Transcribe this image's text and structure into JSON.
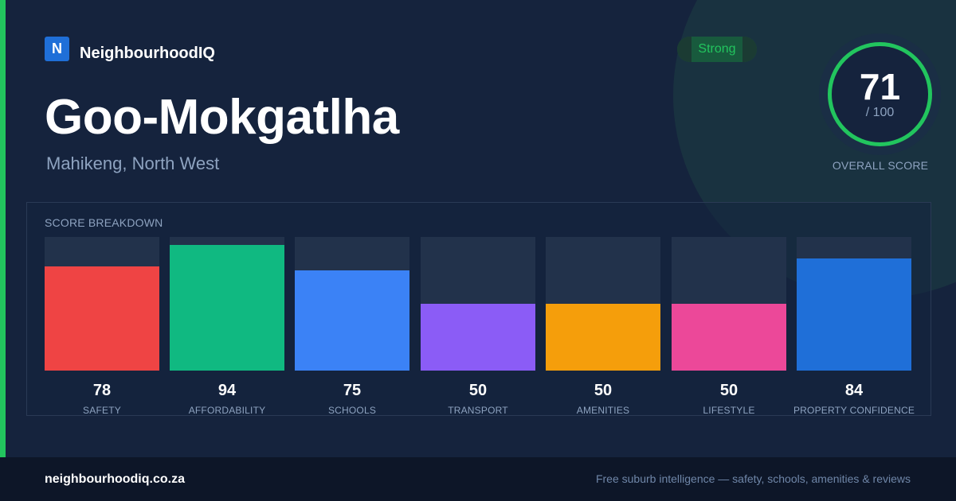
{
  "brand": {
    "logo_letter": "N",
    "name": "NeighbourhoodIQ"
  },
  "suburb": {
    "name": "Goo-Mokgatlha",
    "location": "Mahikeng, North West"
  },
  "rating_badge": "Strong",
  "overall": {
    "score": "71",
    "max": "/ 100",
    "label": "OVERALL SCORE",
    "fraction": 0.71
  },
  "colors": {
    "accent": "#22c55e",
    "background": "#15233d"
  },
  "breakdown": {
    "title": "SCORE BREAKDOWN",
    "max": 100,
    "items": [
      {
        "label": "SAFETY",
        "value": 78,
        "color": "#ef4444"
      },
      {
        "label": "AFFORDABILITY",
        "value": 94,
        "color": "#10b981"
      },
      {
        "label": "SCHOOLS",
        "value": 75,
        "color": "#3b82f6"
      },
      {
        "label": "TRANSPORT",
        "value": 50,
        "color": "#8b5cf6"
      },
      {
        "label": "AMENITIES",
        "value": 50,
        "color": "#f59e0b"
      },
      {
        "label": "LIFESTYLE",
        "value": 50,
        "color": "#ec4899"
      },
      {
        "label": "PROPERTY CONFIDENCE",
        "value": 84,
        "color": "#1f6fd8"
      }
    ]
  },
  "footer": {
    "url": "neighbourhoodiq.co.za",
    "tagline": "Free suburb intelligence — safety, schools, amenities & reviews"
  }
}
